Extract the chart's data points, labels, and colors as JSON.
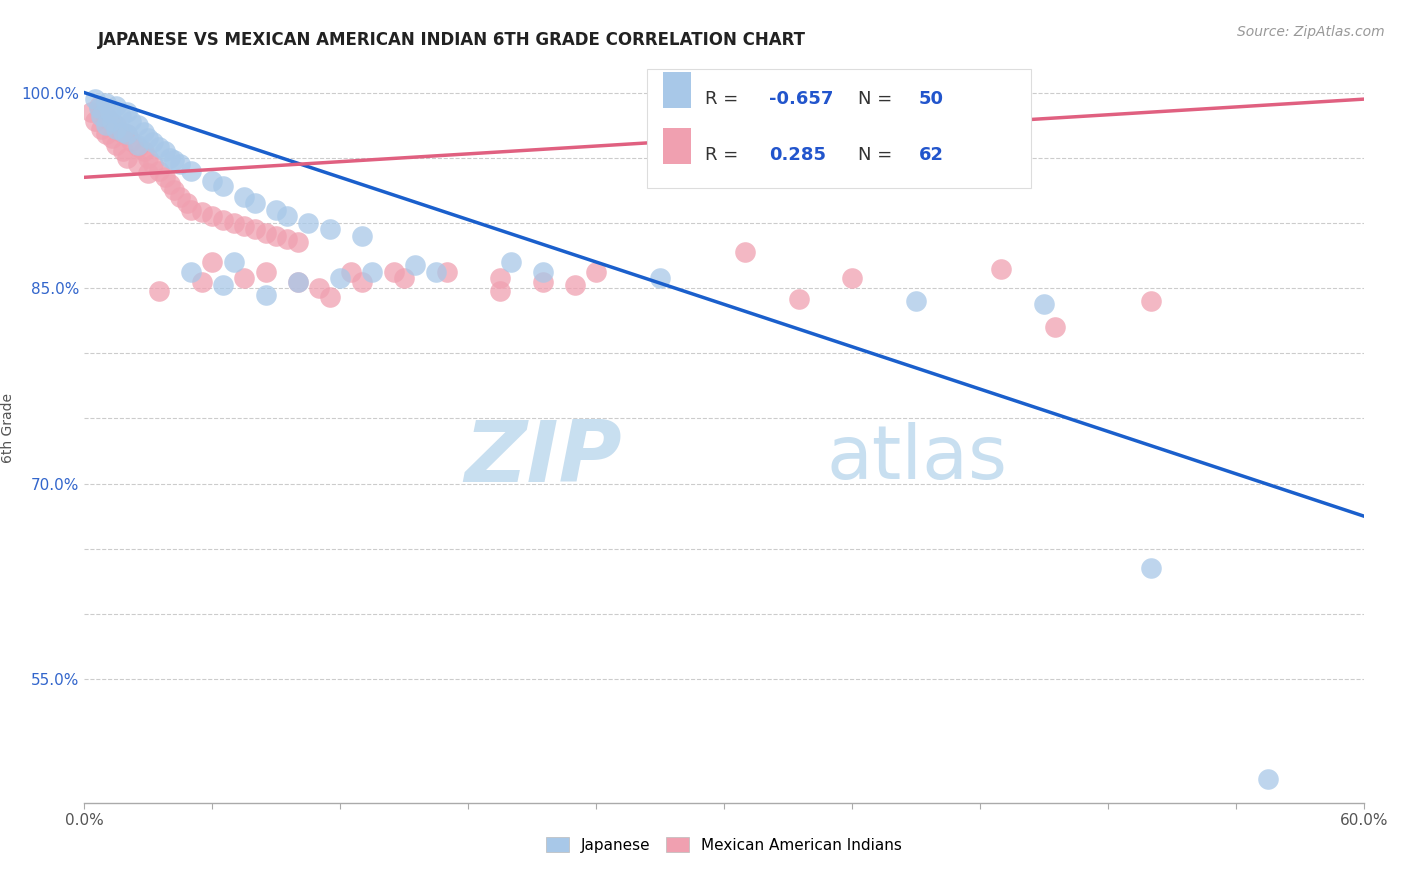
{
  "title": "JAPANESE VS MEXICAN AMERICAN INDIAN 6TH GRADE CORRELATION CHART",
  "source_text": "Source: ZipAtlas.com",
  "ylabel": "6th Grade",
  "xlim": [
    0.0,
    0.6
  ],
  "ylim": [
    0.455,
    1.03
  ],
  "xticks": [
    0.0,
    0.06,
    0.12,
    0.18,
    0.24,
    0.3,
    0.36,
    0.42,
    0.48,
    0.54,
    0.6
  ],
  "xticklabels": [
    "0.0%",
    "",
    "",
    "",
    "",
    "",
    "",
    "",
    "",
    "",
    "60.0%"
  ],
  "yticks": [
    0.55,
    0.6,
    0.65,
    0.7,
    0.75,
    0.8,
    0.85,
    0.9,
    0.95,
    1.0
  ],
  "yticklabels": [
    "55.0%",
    "",
    "",
    "70.0%",
    "",
    "",
    "85.0%",
    "",
    "",
    "100.0%"
  ],
  "legend_r_blue": "-0.657",
  "legend_n_blue": "50",
  "legend_r_pink": "0.285",
  "legend_n_pink": "62",
  "blue_scatter_color": "#a8c8e8",
  "pink_scatter_color": "#f0a0b0",
  "blue_line_color": "#1a5fcc",
  "pink_line_color": "#e06080",
  "watermark_zip": "ZIP",
  "watermark_atlas": "atlas",
  "watermark_color_zip": "#c8dff0",
  "watermark_color_atlas": "#c8dff0",
  "blue_line_x": [
    0.0,
    0.6
  ],
  "blue_line_y": [
    1.0,
    0.675
  ],
  "pink_line_x": [
    0.0,
    0.6
  ],
  "pink_line_y": [
    0.935,
    0.995
  ],
  "blue_points": [
    [
      0.005,
      0.995
    ],
    [
      0.007,
      0.988
    ],
    [
      0.008,
      0.982
    ],
    [
      0.01,
      0.992
    ],
    [
      0.01,
      0.975
    ],
    [
      0.012,
      0.985
    ],
    [
      0.013,
      0.978
    ],
    [
      0.015,
      0.99
    ],
    [
      0.015,
      0.972
    ],
    [
      0.017,
      0.982
    ],
    [
      0.018,
      0.97
    ],
    [
      0.02,
      0.985
    ],
    [
      0.02,
      0.968
    ],
    [
      0.022,
      0.978
    ],
    [
      0.025,
      0.975
    ],
    [
      0.025,
      0.96
    ],
    [
      0.028,
      0.97
    ],
    [
      0.03,
      0.965
    ],
    [
      0.032,
      0.962
    ],
    [
      0.035,
      0.958
    ],
    [
      0.038,
      0.955
    ],
    [
      0.04,
      0.95
    ],
    [
      0.042,
      0.948
    ],
    [
      0.045,
      0.945
    ],
    [
      0.05,
      0.94
    ],
    [
      0.06,
      0.932
    ],
    [
      0.065,
      0.928
    ],
    [
      0.075,
      0.92
    ],
    [
      0.08,
      0.915
    ],
    [
      0.09,
      0.91
    ],
    [
      0.095,
      0.905
    ],
    [
      0.105,
      0.9
    ],
    [
      0.115,
      0.895
    ],
    [
      0.13,
      0.89
    ],
    [
      0.05,
      0.862
    ],
    [
      0.065,
      0.852
    ],
    [
      0.07,
      0.87
    ],
    [
      0.085,
      0.845
    ],
    [
      0.1,
      0.855
    ],
    [
      0.12,
      0.858
    ],
    [
      0.135,
      0.862
    ],
    [
      0.155,
      0.868
    ],
    [
      0.165,
      0.862
    ],
    [
      0.2,
      0.87
    ],
    [
      0.215,
      0.862
    ],
    [
      0.27,
      0.858
    ],
    [
      0.39,
      0.84
    ],
    [
      0.45,
      0.838
    ],
    [
      0.5,
      0.635
    ],
    [
      0.555,
      0.473
    ]
  ],
  "pink_points": [
    [
      0.003,
      0.985
    ],
    [
      0.005,
      0.978
    ],
    [
      0.007,
      0.99
    ],
    [
      0.008,
      0.972
    ],
    [
      0.01,
      0.982
    ],
    [
      0.01,
      0.968
    ],
    [
      0.012,
      0.978
    ],
    [
      0.013,
      0.965
    ],
    [
      0.015,
      0.975
    ],
    [
      0.015,
      0.96
    ],
    [
      0.017,
      0.97
    ],
    [
      0.018,
      0.955
    ],
    [
      0.02,
      0.968
    ],
    [
      0.02,
      0.95
    ],
    [
      0.022,
      0.963
    ],
    [
      0.025,
      0.958
    ],
    [
      0.025,
      0.945
    ],
    [
      0.028,
      0.955
    ],
    [
      0.03,
      0.95
    ],
    [
      0.03,
      0.938
    ],
    [
      0.032,
      0.945
    ],
    [
      0.035,
      0.94
    ],
    [
      0.038,
      0.935
    ],
    [
      0.04,
      0.93
    ],
    [
      0.042,
      0.925
    ],
    [
      0.045,
      0.92
    ],
    [
      0.048,
      0.915
    ],
    [
      0.05,
      0.91
    ],
    [
      0.055,
      0.908
    ],
    [
      0.06,
      0.905
    ],
    [
      0.065,
      0.902
    ],
    [
      0.07,
      0.9
    ],
    [
      0.075,
      0.898
    ],
    [
      0.08,
      0.895
    ],
    [
      0.085,
      0.892
    ],
    [
      0.09,
      0.89
    ],
    [
      0.095,
      0.888
    ],
    [
      0.1,
      0.885
    ],
    [
      0.035,
      0.848
    ],
    [
      0.055,
      0.855
    ],
    [
      0.06,
      0.87
    ],
    [
      0.075,
      0.858
    ],
    [
      0.085,
      0.862
    ],
    [
      0.1,
      0.855
    ],
    [
      0.11,
      0.85
    ],
    [
      0.115,
      0.843
    ],
    [
      0.125,
      0.862
    ],
    [
      0.13,
      0.855
    ],
    [
      0.145,
      0.862
    ],
    [
      0.15,
      0.858
    ],
    [
      0.17,
      0.862
    ],
    [
      0.195,
      0.858
    ],
    [
      0.195,
      0.848
    ],
    [
      0.215,
      0.855
    ],
    [
      0.23,
      0.852
    ],
    [
      0.24,
      0.862
    ],
    [
      0.31,
      0.878
    ],
    [
      0.335,
      0.842
    ],
    [
      0.36,
      0.858
    ],
    [
      0.43,
      0.865
    ],
    [
      0.455,
      0.82
    ],
    [
      0.5,
      0.84
    ]
  ]
}
